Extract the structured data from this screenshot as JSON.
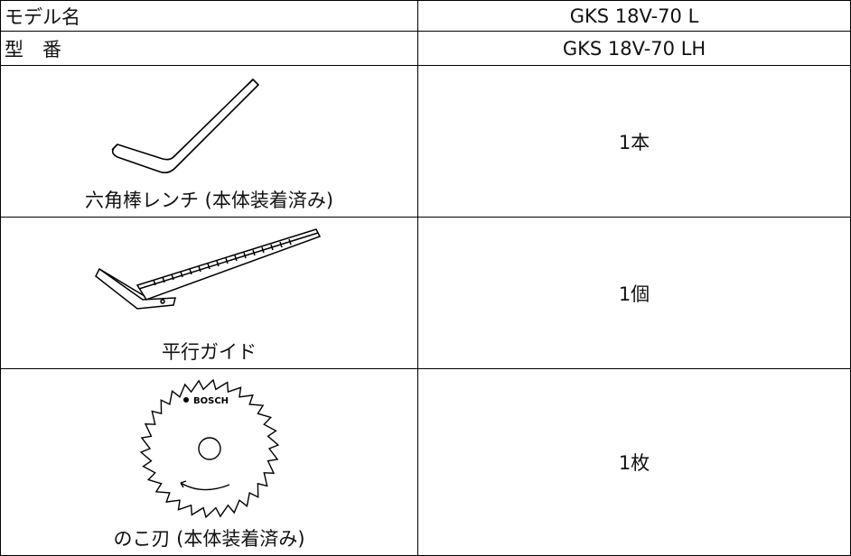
{
  "table": {
    "header_rows": [
      [
        "モデル名",
        "GKS 18V-70 L"
      ],
      [
        "型　番",
        "GKS 18V-70 LH"
      ]
    ],
    "rows": [
      {
        "item": "六角棒レンチ (本体装着済み)",
        "quantity": "1本"
      },
      {
        "item": "平行ガイド",
        "quantity": "1個"
      },
      {
        "item": "のこ刃 (本体装着済み)",
        "quantity": "1枚"
      }
    ]
  },
  "blade_label": "BOSCH"
}
